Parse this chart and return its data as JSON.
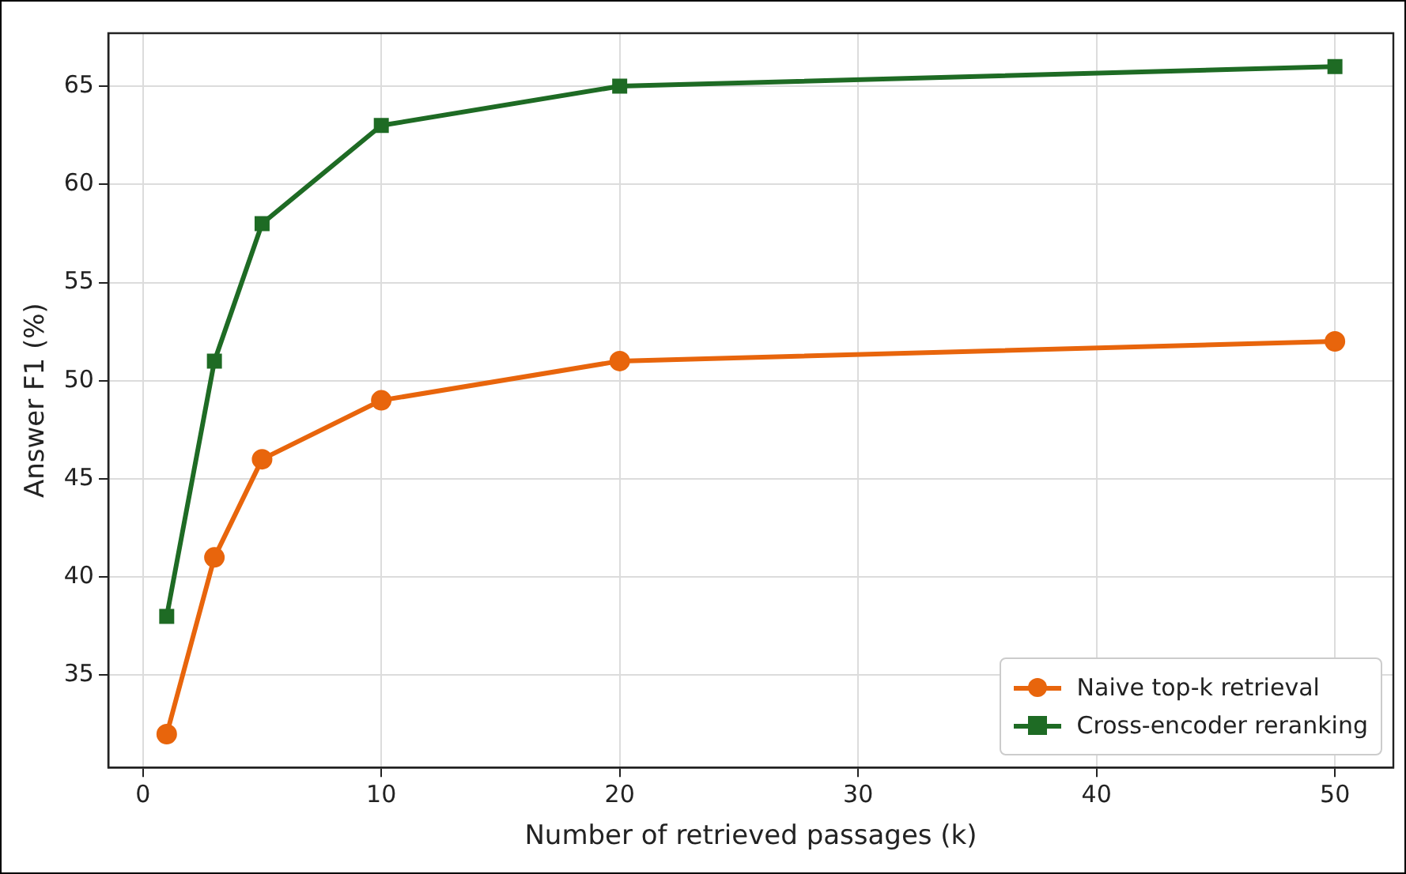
{
  "chart_data": {
    "type": "line",
    "xlabel": "Number of retrieved passages (k)",
    "ylabel": "Answer F1 (%)",
    "x": [
      1,
      3,
      5,
      10,
      20,
      50
    ],
    "series": [
      {
        "name": "Naive top-k retrieval",
        "color": "#e8650c",
        "values": [
          32,
          41,
          46,
          49,
          51,
          52
        ],
        "marker": "circle"
      },
      {
        "name": "Cross-encoder reranking",
        "color": "#1e6b24",
        "values": [
          38,
          51,
          58,
          63,
          65,
          66
        ],
        "marker": "square"
      }
    ],
    "xlim": [
      -1.45,
      52.45
    ],
    "xticks": [
      0,
      10,
      20,
      30,
      40,
      50
    ],
    "ylim": [
      30.3,
      67.7
    ],
    "yticks": [
      35,
      40,
      45,
      50,
      55,
      60,
      65
    ],
    "grid": true,
    "legend": "bottom right",
    "line_style": "solid"
  }
}
